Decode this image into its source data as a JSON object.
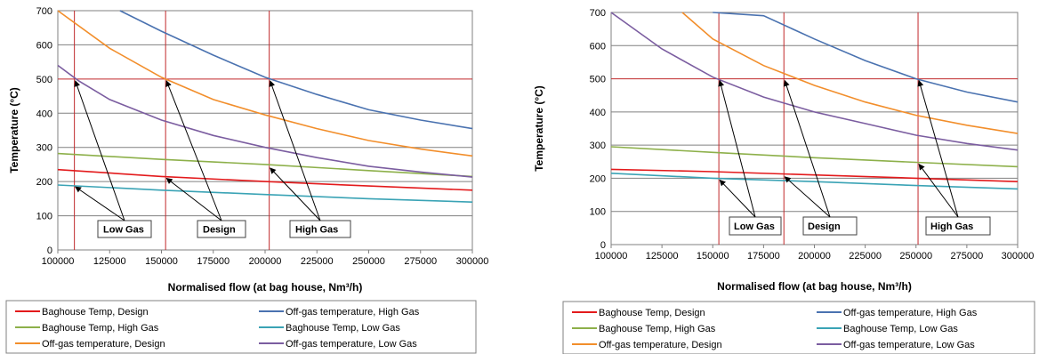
{
  "chart_data": [
    {
      "type": "line",
      "xlabel": "Normalised flow (at bag house, Nm³/h)",
      "ylabel": "Temperature (°C)",
      "xlim": [
        100000,
        300000
      ],
      "ylim": [
        0,
        700
      ],
      "x_ticks": [
        "100000",
        "125000",
        "150000",
        "175000",
        "200000",
        "225000",
        "250000",
        "275000",
        "300000"
      ],
      "y_ticks": [
        "0",
        "100",
        "200",
        "300",
        "400",
        "500",
        "600",
        "700"
      ],
      "grid": "horizontal",
      "reference_lines": {
        "x": [
          108000,
          152000,
          202000
        ],
        "y": [
          500
        ]
      },
      "series": [
        {
          "name": "Baghouse Temp, Design",
          "color": "#e31a1c",
          "x": [
            100000,
            150000,
            200000,
            250000,
            300000
          ],
          "y": [
            235,
            215,
            200,
            187,
            175
          ]
        },
        {
          "name": "Off-gas temperature, High Gas",
          "color": "#4a72b0",
          "x": [
            130000,
            150000,
            175000,
            200000,
            225000,
            250000,
            275000,
            300000
          ],
          "y": [
            700,
            640,
            570,
            505,
            455,
            410,
            380,
            355
          ]
        },
        {
          "name": "Baghouse Temp, High Gas",
          "color": "#8db04a",
          "x": [
            100000,
            150000,
            200000,
            250000,
            300000
          ],
          "y": [
            282,
            265,
            250,
            232,
            215
          ]
        },
        {
          "name": "Baghouse Temp, Low Gas",
          "color": "#3aa3b5",
          "x": [
            100000,
            150000,
            200000,
            250000,
            300000
          ],
          "y": [
            190,
            175,
            162,
            150,
            140
          ]
        },
        {
          "name": "Off-gas temperature, Design",
          "color": "#f28e2b",
          "x": [
            100000,
            125000,
            150000,
            175000,
            200000,
            225000,
            250000,
            275000,
            300000
          ],
          "y": [
            700,
            590,
            505,
            440,
            395,
            355,
            320,
            295,
            275
          ]
        },
        {
          "name": "Off-gas temperature, Low Gas",
          "color": "#7b5da0",
          "x": [
            100000,
            110000,
            125000,
            150000,
            175000,
            200000,
            225000,
            250000,
            275000,
            300000
          ],
          "y": [
            540,
            495,
            440,
            380,
            335,
            300,
            270,
            245,
            228,
            213
          ]
        }
      ],
      "annotations": [
        {
          "text": "Low Gas",
          "targets": [
            [
              108000,
              500
            ],
            [
              108000,
              190
            ]
          ]
        },
        {
          "text": "Design",
          "targets": [
            [
              152000,
              500
            ],
            [
              152000,
              215
            ]
          ]
        },
        {
          "text": "High Gas",
          "targets": [
            [
              202000,
              500
            ],
            [
              202000,
              245
            ]
          ]
        }
      ],
      "legend_position": "bottom"
    },
    {
      "type": "line",
      "xlabel": "Normalised flow (at bag house, Nm³/h)",
      "ylabel": "Temperature (°C)",
      "xlim": [
        100000,
        300000
      ],
      "ylim": [
        0,
        700
      ],
      "x_ticks": [
        "100000",
        "125000",
        "150000",
        "175000",
        "200000",
        "225000",
        "250000",
        "275000",
        "300000"
      ],
      "y_ticks": [
        "0",
        "100",
        "200",
        "300",
        "400",
        "500",
        "600",
        "700"
      ],
      "grid": "horizontal",
      "reference_lines": {
        "x": [
          153000,
          185000,
          251000
        ],
        "y": [
          500
        ]
      },
      "series": [
        {
          "name": "Baghouse Temp, Design",
          "color": "#e31a1c",
          "x": [
            100000,
            150000,
            200000,
            250000,
            300000
          ],
          "y": [
            227,
            220,
            210,
            200,
            190
          ]
        },
        {
          "name": "Off-gas temperature, High Gas",
          "color": "#4a72b0",
          "x": [
            150000,
            175000,
            200000,
            225000,
            250000,
            275000,
            300000
          ],
          "y": [
            700,
            690,
            620,
            555,
            500,
            460,
            430
          ]
        },
        {
          "name": "Baghouse Temp, High Gas",
          "color": "#8db04a",
          "x": [
            100000,
            150000,
            200000,
            250000,
            300000
          ],
          "y": [
            295,
            278,
            262,
            248,
            235
          ]
        },
        {
          "name": "Baghouse Temp, Low Gas",
          "color": "#3aa3b5",
          "x": [
            100000,
            150000,
            200000,
            250000,
            300000
          ],
          "y": [
            215,
            200,
            190,
            178,
            168
          ]
        },
        {
          "name": "Off-gas temperature, Design",
          "color": "#f28e2b",
          "x": [
            135000,
            150000,
            175000,
            200000,
            225000,
            250000,
            275000,
            300000
          ],
          "y": [
            700,
            620,
            540,
            480,
            430,
            390,
            360,
            335
          ]
        },
        {
          "name": "Off-gas temperature, Low Gas",
          "color": "#7b5da0",
          "x": [
            100000,
            125000,
            150000,
            175000,
            200000,
            225000,
            250000,
            275000,
            300000
          ],
          "y": [
            700,
            590,
            505,
            445,
            400,
            365,
            330,
            305,
            285
          ]
        }
      ],
      "annotations": [
        {
          "text": "Low Gas",
          "targets": [
            [
              153000,
              500
            ],
            [
              153000,
              200
            ]
          ]
        },
        {
          "text": "Design",
          "targets": [
            [
              185000,
              500
            ],
            [
              185000,
              210
            ]
          ]
        },
        {
          "text": "High Gas",
          "targets": [
            [
              251000,
              500
            ],
            [
              251000,
              248
            ]
          ]
        }
      ],
      "legend_position": "bottom"
    }
  ]
}
